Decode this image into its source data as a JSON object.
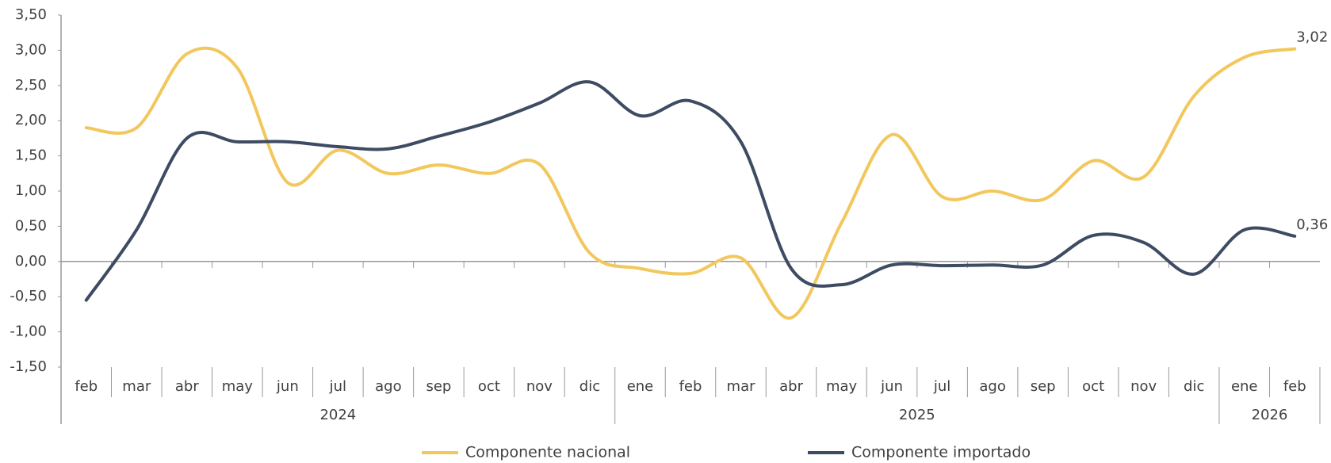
{
  "chart_data": {
    "type": "line",
    "groups": [
      {
        "label": "2024",
        "categories": [
          "feb",
          "mar",
          "abr",
          "may",
          "jun",
          "jul",
          "ago",
          "sep",
          "oct",
          "nov",
          "dic"
        ]
      },
      {
        "label": "2025",
        "categories": [
          "ene",
          "feb",
          "mar",
          "abr",
          "may",
          "jun",
          "jul",
          "ago",
          "sep",
          "oct",
          "nov",
          "dic"
        ]
      },
      {
        "label": "2026",
        "categories": [
          "ene",
          "feb"
        ]
      }
    ],
    "series": [
      {
        "name": "Componente nacional",
        "color": "#f2c75c",
        "values": [
          1.9,
          1.9,
          2.95,
          2.75,
          1.12,
          1.58,
          1.25,
          1.37,
          1.25,
          1.38,
          0.12,
          -0.1,
          -0.17,
          0.05,
          -0.8,
          0.55,
          1.8,
          0.92,
          1.0,
          0.88,
          1.43,
          1.2,
          2.35,
          2.9,
          3.02
        ],
        "value_labels": [
          null,
          null,
          null,
          null,
          null,
          null,
          null,
          null,
          null,
          null,
          null,
          null,
          null,
          null,
          null,
          null,
          null,
          null,
          null,
          null,
          null,
          null,
          null,
          null,
          "3,02"
        ]
      },
      {
        "name": "Componente importado",
        "color": "#3d4b63",
        "values": [
          -0.55,
          0.45,
          1.75,
          1.7,
          1.7,
          1.63,
          1.6,
          1.78,
          1.98,
          2.25,
          2.55,
          2.07,
          2.28,
          1.7,
          -0.1,
          -0.33,
          -0.05,
          -0.06,
          -0.05,
          -0.05,
          0.37,
          0.27,
          -0.18,
          0.45,
          0.36
        ],
        "value_labels": [
          null,
          null,
          null,
          null,
          null,
          null,
          null,
          null,
          null,
          null,
          null,
          null,
          null,
          null,
          null,
          null,
          null,
          null,
          null,
          null,
          null,
          null,
          null,
          null,
          "0,36"
        ]
      }
    ],
    "ylim": [
      -1.5,
      3.5
    ],
    "yticks": [
      {
        "value": -1.5,
        "label": "-1,50"
      },
      {
        "value": -1,
        "label": "-1,00"
      },
      {
        "value": -0.5,
        "label": "-0,50"
      },
      {
        "value": 0,
        "label": "0,00"
      },
      {
        "value": 0.5,
        "label": "0,50"
      },
      {
        "value": 1,
        "label": "1,00"
      },
      {
        "value": 1.5,
        "label": "1,50"
      },
      {
        "value": 2,
        "label": "2,00"
      },
      {
        "value": 2.5,
        "label": "2,50"
      },
      {
        "value": 3,
        "label": "3,00"
      },
      {
        "value": 3.5,
        "label": "3,50"
      }
    ],
    "legend": "bottom"
  }
}
